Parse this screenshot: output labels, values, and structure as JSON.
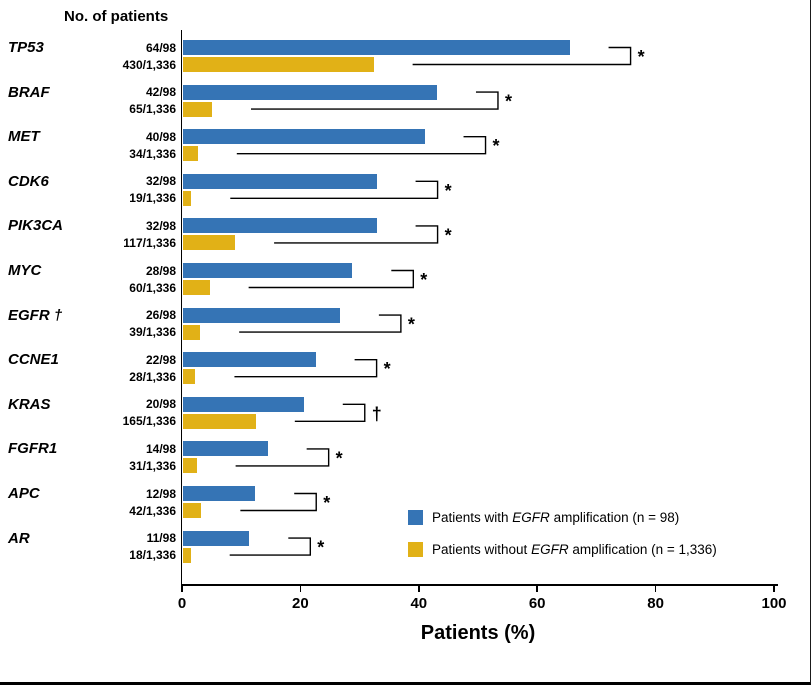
{
  "header": "No. of patients",
  "legend": [
    {
      "prefix": "Patients with ",
      "gene": "EGFR",
      "suffix": " amplification (n = 98)",
      "color": "#3574B5"
    },
    {
      "prefix": "Patients without ",
      "gene": "EGFR",
      "suffix": " amplification (n = 1,336)",
      "color": "#E1B117"
    }
  ],
  "chart_data": {
    "type": "bar",
    "orientation": "horizontal",
    "title": "",
    "xlabel": "Patients (%)",
    "left_header": "No. of patients",
    "xlim": [
      0,
      100
    ],
    "x_ticks": [
      0,
      20,
      40,
      60,
      80,
      100
    ],
    "grid": false,
    "legend_position": "bottom-right",
    "series": [
      {
        "name": "Patients with EGFR amplification (n = 98)",
        "color": "#3574B5"
      },
      {
        "name": "Patients without EGFR amplification (n = 1,336)",
        "color": "#E1B117"
      }
    ],
    "rows": [
      {
        "gene": "TP53",
        "with_count": "64/98",
        "without_count": "430/1,336",
        "with_pct": 65.3,
        "without_pct": 32.2,
        "sig": "*"
      },
      {
        "gene": "BRAF",
        "with_count": "42/98",
        "without_count": "65/1,336",
        "with_pct": 42.9,
        "without_pct": 4.9,
        "sig": "*"
      },
      {
        "gene": "MET",
        "with_count": "40/98",
        "without_count": "34/1,336",
        "with_pct": 40.8,
        "without_pct": 2.5,
        "sig": "*"
      },
      {
        "gene": "CDK6",
        "with_count": "32/98",
        "without_count": "19/1,336",
        "with_pct": 32.7,
        "without_pct": 1.4,
        "sig": "*"
      },
      {
        "gene": "PIK3CA",
        "with_count": "32/98",
        "without_count": "117/1,336",
        "with_pct": 32.7,
        "without_pct": 8.8,
        "sig": "*"
      },
      {
        "gene": "MYC",
        "with_count": "28/98",
        "without_count": "60/1,336",
        "with_pct": 28.6,
        "without_pct": 4.5,
        "sig": "*"
      },
      {
        "gene": "EGFR †",
        "with_count": "26/98",
        "without_count": "39/1,336",
        "with_pct": 26.5,
        "without_pct": 2.9,
        "sig": "*"
      },
      {
        "gene": "CCNE1",
        "with_count": "22/98",
        "without_count": "28/1,336",
        "with_pct": 22.4,
        "without_pct": 2.1,
        "sig": "*"
      },
      {
        "gene": "KRAS",
        "with_count": "20/98",
        "without_count": "165/1,336",
        "with_pct": 20.4,
        "without_pct": 12.3,
        "sig": "†"
      },
      {
        "gene": "FGFR1",
        "with_count": "14/98",
        "without_count": "31/1,336",
        "with_pct": 14.3,
        "without_pct": 2.3,
        "sig": "*"
      },
      {
        "gene": "APC",
        "with_count": "12/98",
        "without_count": "42/1,336",
        "with_pct": 12.2,
        "without_pct": 3.1,
        "sig": "*"
      },
      {
        "gene": "AR",
        "with_count": "11/98",
        "without_count": "18/1,336",
        "with_pct": 11.2,
        "without_pct": 1.3,
        "sig": "*"
      }
    ]
  }
}
